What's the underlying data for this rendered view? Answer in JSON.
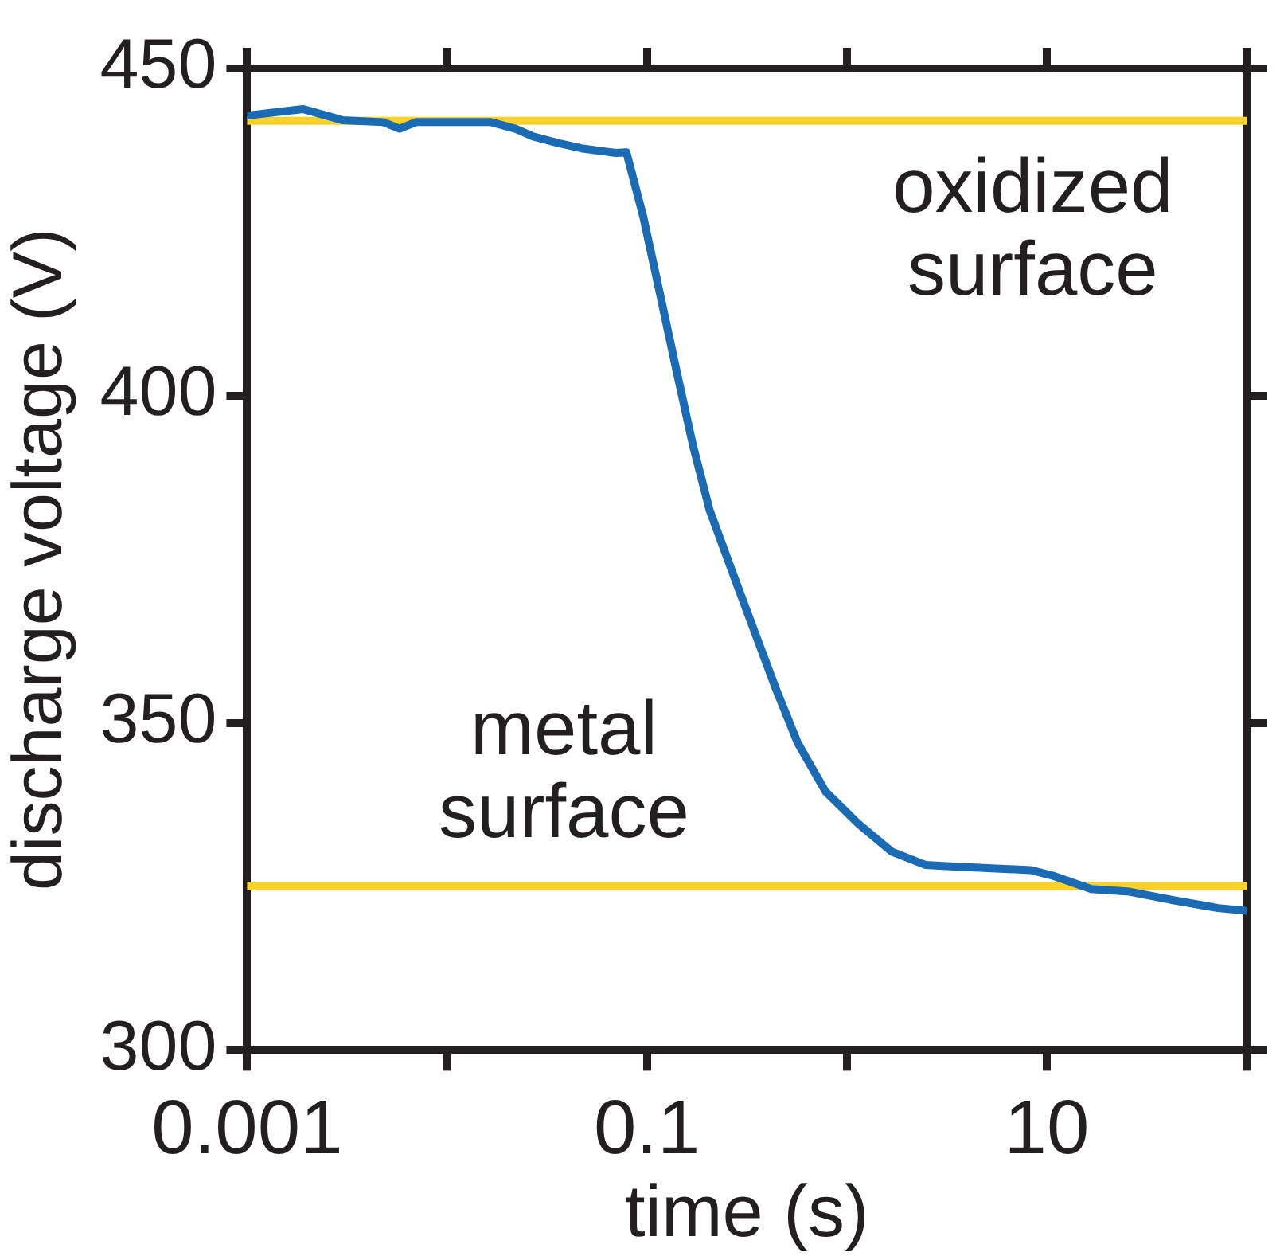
{
  "chart_data": {
    "type": "line",
    "xlabel": "time (s)",
    "ylabel": "discharge voltage (V)",
    "log": "x",
    "xlim": [
      0.001,
      100
    ],
    "xticks": [
      0.001,
      {
        "value": 0.01,
        "label": null
      },
      0.1,
      {
        "value": 1,
        "label": null
      },
      10,
      {
        "value": 100,
        "label": null
      }
    ],
    "ylim": [
      300,
      450
    ],
    "yticks": [
      300,
      350,
      400,
      450
    ],
    "grid": false,
    "legend": false,
    "marker": "none",
    "line_style": "solid",
    "series": [
      {
        "color": "#1a6ab4",
        "x": [
          0.001,
          0.0019,
          0.003,
          0.0048,
          0.0058,
          0.007,
          0.0166,
          0.022,
          0.027,
          0.036,
          0.047,
          0.07,
          0.079,
          0.096,
          0.116,
          0.14,
          0.17,
          0.206,
          0.265,
          0.342,
          0.442,
          0.569,
          0.783,
          1.15,
          1.68,
          2.47,
          3.61,
          8.3,
          10.6,
          16.7,
          26,
          43,
          72,
          100
        ],
        "values": [
          442.8,
          443.8,
          442.1,
          441.8,
          440.8,
          441.8,
          441.8,
          440.8,
          439.6,
          438.6,
          437.8,
          437.1,
          437.2,
          427.3,
          415.7,
          404.1,
          392.4,
          382.5,
          373.4,
          364.3,
          355.2,
          346.9,
          339.5,
          334.5,
          330.3,
          328.3,
          328,
          327.5,
          326.7,
          324.6,
          324.2,
          322.9,
          321.7,
          321.3
        ]
      }
    ],
    "ref_lines": [
      {
        "axis": "y",
        "value": 442,
        "color": "#fcd22a",
        "label": "oxidized\nsurface"
      },
      {
        "axis": "y",
        "value": 325,
        "color": "#fcd22a",
        "label": "metal\nsurface"
      }
    ]
  }
}
